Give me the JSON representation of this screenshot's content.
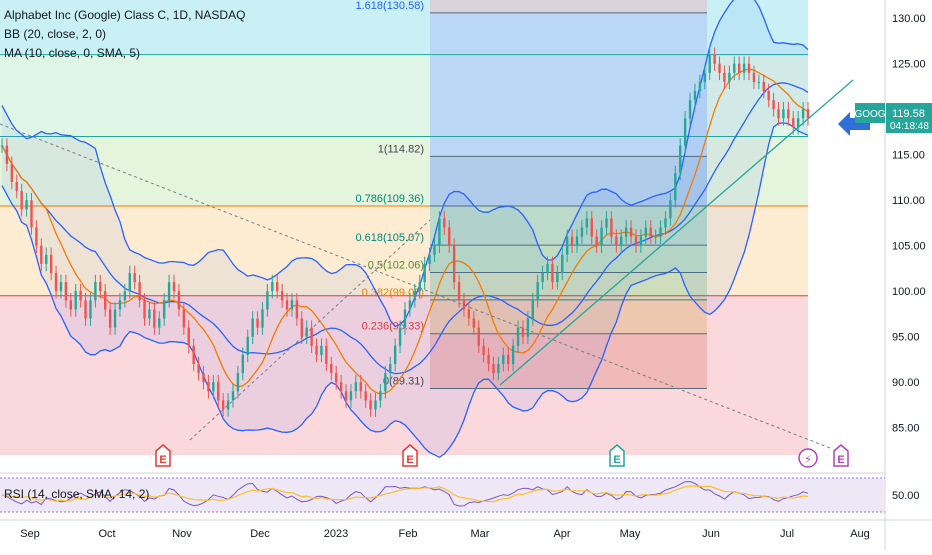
{
  "legend": {
    "title": "Alphabet Inc (Google) Class C, 1D, NASDAQ",
    "bb": "BB (20, close, 2, 0)",
    "ma": "MA (10, close, 0, SMA, 5)"
  },
  "rsi_label": "RSI (14, close, SMA, 14, 2)",
  "colors": {
    "candle_up": "#26a69a",
    "candle_down": "#ef5350",
    "bb_line": "#2962ff",
    "ma_line": "#f57c00",
    "rsi_line": "#7e57c2",
    "rsi_ma": "#fbc02d",
    "trend": "#26a69a",
    "arrow": "#2f6fd6"
  },
  "chart_data": {
    "type": "candlestick",
    "x_ticks": [
      "Sep",
      "Oct",
      "Nov",
      "Dec",
      "2023",
      "Feb",
      "Mar",
      "Apr",
      "May",
      "Jun",
      "Jul",
      "Aug"
    ],
    "y_ticks": [
      "130.00",
      "125.00",
      "120.00",
      "115.00",
      "110.00",
      "105.00",
      "100.00",
      "95.00",
      "90.00",
      "85.00"
    ],
    "ylim": [
      82,
      132
    ],
    "rsi_tick": "50.00",
    "last_price": {
      "symbol": "GOOG",
      "value": "119.58",
      "countdown": "04:18:48"
    },
    "fib_levels": [
      {
        "label": "1.618(130.58)",
        "price": 130.58
      },
      {
        "label": "1(114.82)",
        "price": 114.82
      },
      {
        "label": "0.786(109.36)",
        "price": 109.36
      },
      {
        "label": "0.618(105.07)",
        "price": 105.07
      },
      {
        "label": "0.5(102.06)",
        "price": 102.06
      },
      {
        "label": "0.382(99.05)",
        "price": 99.05
      },
      {
        "label": "0.236(95.33)",
        "price": 95.33
      },
      {
        "label": "0(89.31)",
        "price": 89.31
      }
    ],
    "events": [
      {
        "label": "E",
        "kind": "earnings"
      },
      {
        "label": "E",
        "kind": "earnings"
      },
      {
        "label": "E",
        "kind": "earnings"
      },
      {
        "label": "⚡",
        "kind": "split"
      },
      {
        "label": "E",
        "kind": "earnings-upcoming"
      }
    ],
    "price_series": [
      116,
      114,
      112,
      111,
      109,
      110,
      107,
      105,
      103,
      104,
      102,
      100,
      101,
      99,
      98,
      100,
      99,
      97,
      99,
      101,
      100,
      98,
      96,
      98,
      99,
      100,
      102,
      101,
      99,
      97,
      98,
      96,
      97,
      99,
      101,
      100,
      98,
      96,
      94,
      92,
      91,
      90,
      89,
      90,
      88,
      87,
      88,
      89,
      91,
      93,
      95,
      97,
      96,
      98,
      100,
      101,
      100,
      99,
      98,
      99,
      97,
      95,
      96,
      94,
      93,
      94,
      92,
      91,
      90,
      89,
      88,
      89,
      90,
      89,
      88,
      87,
      88,
      89,
      91,
      92,
      94,
      96,
      98,
      99,
      100,
      101,
      103,
      104,
      105,
      108,
      107,
      105,
      101,
      99,
      98,
      97,
      96,
      94,
      93,
      92,
      91,
      92,
      93,
      92,
      94,
      96,
      95,
      97,
      99,
      101,
      102,
      103,
      101,
      102,
      104,
      106,
      105,
      106,
      107,
      108,
      106,
      105,
      107,
      108,
      106,
      105,
      106,
      107,
      106,
      105,
      106,
      107,
      106,
      106,
      107,
      108,
      110,
      113,
      116,
      119,
      121,
      122,
      123,
      124,
      126,
      125,
      124,
      123,
      124,
      125,
      124,
      125,
      124,
      123,
      123,
      122,
      121,
      120,
      119,
      120,
      119,
      118,
      119,
      120,
      119
    ]
  }
}
